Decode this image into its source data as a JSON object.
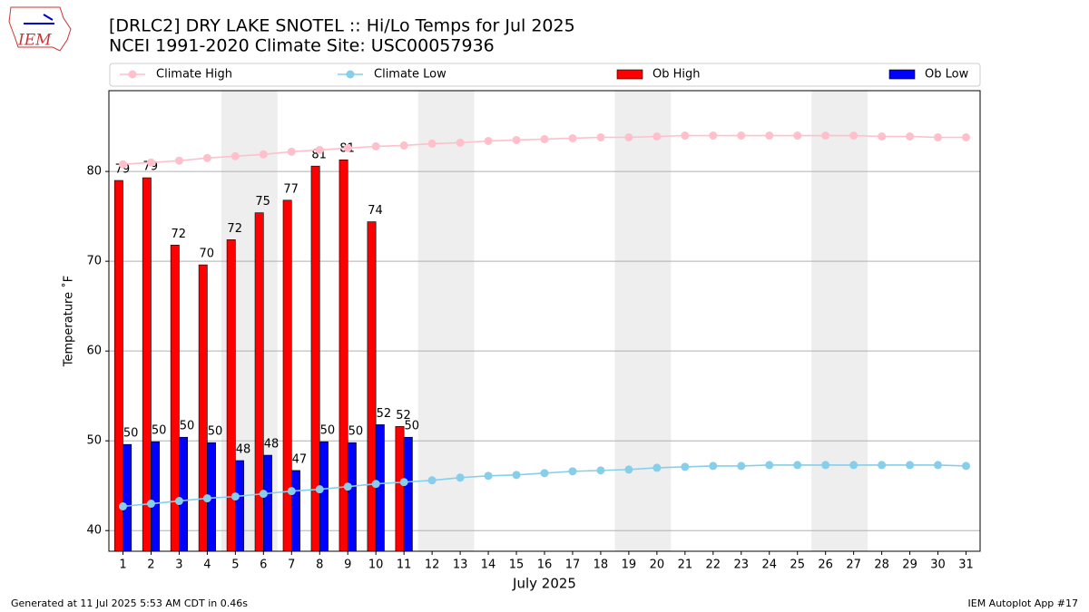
{
  "chart_data": {
    "type": "bar",
    "title": "[DRLC2] DRY LAKE SNOTEL :: Hi/Lo Temps for Jul 2025",
    "subtitle": "NCEI 1991-2020 Climate Site: USC00057936",
    "logo_text": "IEM",
    "xlabel": "July 2025",
    "ylabel": "Temperature ˚F",
    "footer_left": "Generated at 11 Jul 2025 5:53 AM CDT in 0.46s",
    "footer_right": "IEM Autoplot App #17",
    "x": [
      1,
      2,
      3,
      4,
      5,
      6,
      7,
      8,
      9,
      10,
      11,
      12,
      13,
      14,
      15,
      16,
      17,
      18,
      19,
      20,
      21,
      22,
      23,
      24,
      25,
      26,
      27,
      28,
      29,
      30,
      31
    ],
    "xlim": [
      0.5,
      31.5
    ],
    "xticks": [
      1,
      2,
      3,
      4,
      5,
      6,
      7,
      8,
      9,
      10,
      11,
      12,
      13,
      14,
      15,
      16,
      17,
      18,
      19,
      20,
      21,
      22,
      23,
      24,
      25,
      26,
      27,
      28,
      29,
      30,
      31
    ],
    "ylim": [
      37.7,
      89
    ],
    "yticks": [
      40,
      50,
      60,
      70,
      80
    ],
    "grid": true,
    "legend": "top",
    "series": [
      {
        "name": "Climate High",
        "kind": "line",
        "color": "#ffc0cb",
        "values": [
          80.8,
          81.0,
          81.2,
          81.5,
          81.7,
          81.9,
          82.2,
          82.4,
          82.6,
          82.8,
          82.9,
          83.1,
          83.2,
          83.4,
          83.5,
          83.6,
          83.7,
          83.8,
          83.8,
          83.9,
          84.0,
          84.0,
          84.0,
          84.0,
          84.0,
          84.0,
          84.0,
          83.9,
          83.9,
          83.8,
          83.8
        ]
      },
      {
        "name": "Climate Low",
        "kind": "line",
        "color": "#87ceeb",
        "values": [
          42.7,
          43.0,
          43.3,
          43.6,
          43.8,
          44.1,
          44.4,
          44.6,
          44.9,
          45.2,
          45.4,
          45.6,
          45.9,
          46.1,
          46.2,
          46.4,
          46.6,
          46.7,
          46.8,
          47.0,
          47.1,
          47.2,
          47.2,
          47.3,
          47.3,
          47.3,
          47.3,
          47.3,
          47.3,
          47.3,
          47.2
        ]
      },
      {
        "name": "Ob High",
        "kind": "bar",
        "color": "#ff0000",
        "offset": -0.15,
        "values": [
          79.0,
          79.3,
          71.8,
          69.6,
          72.4,
          75.4,
          76.8,
          80.6,
          81.3,
          74.4,
          51.6,
          null,
          null,
          null,
          null,
          null,
          null,
          null,
          null,
          null,
          null,
          null,
          null,
          null,
          null,
          null,
          null,
          null,
          null,
          null,
          null
        ],
        "value_labels": [
          "79",
          "79",
          "72",
          "70",
          "72",
          "75",
          "77",
          "81",
          "81",
          "74",
          "52",
          null,
          null,
          null,
          null,
          null,
          null,
          null,
          null,
          null,
          null,
          null,
          null,
          null,
          null,
          null,
          null,
          null,
          null,
          null,
          null
        ]
      },
      {
        "name": "Ob Low",
        "kind": "bar",
        "color": "#0000ff",
        "offset": 0.15,
        "values": [
          49.6,
          49.9,
          50.4,
          49.8,
          47.8,
          48.4,
          46.7,
          49.9,
          49.8,
          51.8,
          50.4,
          null,
          null,
          null,
          null,
          null,
          null,
          null,
          null,
          null,
          null,
          null,
          null,
          null,
          null,
          null,
          null,
          null,
          null,
          null,
          null
        ],
        "value_labels": [
          "50",
          "50",
          "50",
          "50",
          "48",
          "48",
          "47",
          "50",
          "50",
          "52",
          "50",
          null,
          null,
          null,
          null,
          null,
          null,
          null,
          null,
          null,
          null,
          null,
          null,
          null,
          null,
          null,
          null,
          null,
          null,
          null,
          null
        ]
      }
    ]
  }
}
